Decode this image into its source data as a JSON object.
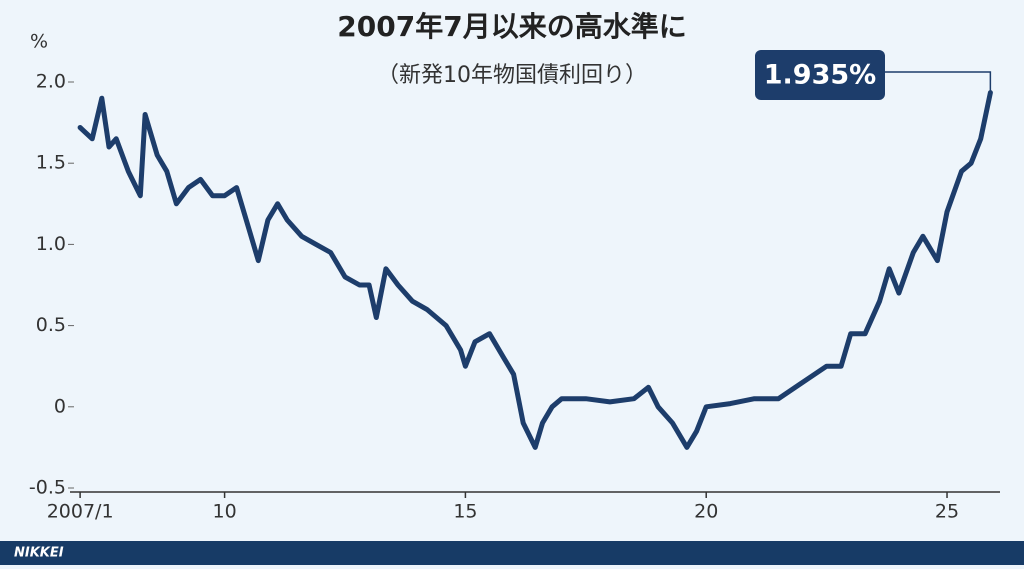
{
  "chart_data": {
    "type": "line",
    "title": "2007年7月以来の高水準に",
    "subtitle": "（新発10年物国債利回り）",
    "y_label": "%",
    "annotation": "1.935%",
    "footer": "NIKKEI",
    "color": "#1d3d6b",
    "x": [
      2007.0,
      2007.25,
      2007.45,
      2007.6,
      2007.75,
      2008.0,
      2008.25,
      2008.35,
      2008.6,
      2008.8,
      2009.0,
      2009.25,
      2009.5,
      2009.75,
      2010.0,
      2010.25,
      2010.5,
      2010.7,
      2010.9,
      2011.1,
      2011.3,
      2011.6,
      2011.9,
      2012.2,
      2012.5,
      2012.8,
      2013.0,
      2013.15,
      2013.35,
      2013.6,
      2013.9,
      2014.2,
      2014.6,
      2014.9,
      2015.0,
      2015.2,
      2015.5,
      2015.8,
      2016.0,
      2016.2,
      2016.45,
      2016.6,
      2016.8,
      2017.0,
      2017.5,
      2018.0,
      2018.5,
      2018.8,
      2019.0,
      2019.3,
      2019.6,
      2019.8,
      2020.0,
      2020.5,
      2021.0,
      2021.5,
      2022.0,
      2022.5,
      2022.8,
      2023.0,
      2023.3,
      2023.6,
      2023.8,
      2024.0,
      2024.3,
      2024.5,
      2024.8,
      2025.0,
      2025.3,
      2025.5,
      2025.7,
      2025.9
    ],
    "values": [
      1.72,
      1.65,
      1.9,
      1.6,
      1.65,
      1.45,
      1.3,
      1.8,
      1.55,
      1.45,
      1.25,
      1.35,
      1.4,
      1.3,
      1.3,
      1.35,
      1.1,
      0.9,
      1.15,
      1.25,
      1.15,
      1.05,
      1.0,
      0.95,
      0.8,
      0.75,
      0.75,
      0.55,
      0.85,
      0.75,
      0.65,
      0.6,
      0.5,
      0.35,
      0.25,
      0.4,
      0.45,
      0.3,
      0.2,
      -0.1,
      -0.25,
      -0.1,
      0.0,
      0.05,
      0.05,
      0.03,
      0.05,
      0.12,
      0.0,
      -0.1,
      -0.25,
      -0.15,
      0.0,
      0.02,
      0.05,
      0.05,
      0.15,
      0.25,
      0.25,
      0.45,
      0.45,
      0.65,
      0.85,
      0.7,
      0.95,
      1.05,
      0.9,
      1.2,
      1.45,
      1.5,
      1.65,
      1.935
    ],
    "xlim": [
      2006.79,
      2026.1
    ],
    "xticks": [
      {
        "value": 2007,
        "label": "2007/1"
      },
      {
        "value": 2010,
        "label": "10"
      },
      {
        "value": 2015,
        "label": "15"
      },
      {
        "value": 2020,
        "label": "20"
      },
      {
        "value": 2025,
        "label": "25"
      }
    ],
    "ylim": [
      -0.5,
      2.0
    ],
    "yticks": [
      {
        "value": 2.0,
        "label": "2.0"
      },
      1.5,
      {
        "value": 1.0,
        "label": "1.0"
      },
      0.5,
      0,
      -0.5
    ]
  }
}
